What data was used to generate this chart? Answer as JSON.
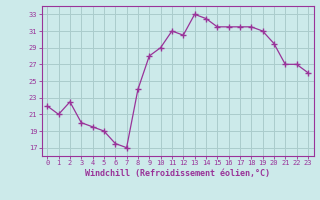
{
  "x": [
    0,
    1,
    2,
    3,
    4,
    5,
    6,
    7,
    8,
    9,
    10,
    11,
    12,
    13,
    14,
    15,
    16,
    17,
    18,
    19,
    20,
    21,
    22,
    23
  ],
  "y": [
    22,
    21,
    22.5,
    20,
    19.5,
    19,
    17.5,
    17,
    24,
    28,
    29,
    31,
    30.5,
    33,
    32.5,
    31.5,
    31.5,
    31.5,
    31.5,
    31,
    29.5,
    27,
    27,
    26
  ],
  "line_color": "#993399",
  "marker_color": "#993399",
  "bg_color": "#cceaea",
  "grid_color": "#aacccc",
  "xlabel": "Windchill (Refroidissement éolien,°C)",
  "yticks": [
    17,
    19,
    21,
    23,
    25,
    27,
    29,
    31,
    33
  ],
  "xticks": [
    0,
    1,
    2,
    3,
    4,
    5,
    6,
    7,
    8,
    9,
    10,
    11,
    12,
    13,
    14,
    15,
    16,
    17,
    18,
    19,
    20,
    21,
    22,
    23
  ],
  "ylim": [
    16,
    34
  ],
  "xlim": [
    -0.5,
    23.5
  ],
  "tick_color": "#993399",
  "label_color": "#993399",
  "spine_color": "#993399"
}
